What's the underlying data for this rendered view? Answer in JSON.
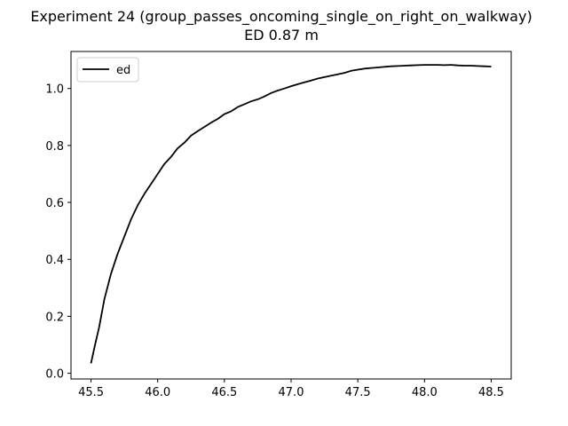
{
  "chart_data": {
    "type": "line",
    "title": "Experiment 24 (group_passes_oncoming_single_on_right_on_walkway)",
    "subtitle": "ED 0.87 m",
    "xlabel": "",
    "ylabel": "",
    "xlim": [
      45.35,
      48.65
    ],
    "ylim": [
      -0.02,
      1.13
    ],
    "xticks": [
      45.5,
      46.0,
      46.5,
      47.0,
      47.5,
      48.0,
      48.5
    ],
    "xtick_labels": [
      "45.5",
      "46.0",
      "46.5",
      "47.0",
      "47.5",
      "48.0",
      "48.5"
    ],
    "yticks": [
      0.0,
      0.2,
      0.4,
      0.6,
      0.8,
      1.0
    ],
    "ytick_labels": [
      "0.0",
      "0.2",
      "0.4",
      "0.6",
      "0.8",
      "1.0"
    ],
    "grid": false,
    "legend_position": "top-left",
    "series": [
      {
        "name": "ed",
        "color": "#000000",
        "x": [
          45.5,
          45.53,
          45.56,
          45.6,
          45.65,
          45.7,
          45.75,
          45.8,
          45.85,
          45.9,
          45.95,
          46.0,
          46.05,
          46.1,
          46.15,
          46.2,
          46.25,
          46.3,
          46.35,
          46.4,
          46.45,
          46.5,
          46.55,
          46.6,
          46.65,
          46.7,
          46.75,
          46.8,
          46.85,
          46.9,
          46.95,
          47.0,
          47.05,
          47.1,
          47.15,
          47.2,
          47.25,
          47.3,
          47.35,
          47.4,
          47.45,
          47.5,
          47.55,
          47.6,
          47.65,
          47.7,
          47.75,
          47.8,
          47.85,
          47.9,
          47.95,
          48.0,
          48.05,
          48.1,
          48.15,
          48.2,
          48.25,
          48.3,
          48.35,
          48.4,
          48.45,
          48.5
        ],
        "y": [
          0.035,
          0.1,
          0.16,
          0.26,
          0.35,
          0.42,
          0.48,
          0.54,
          0.59,
          0.63,
          0.665,
          0.7,
          0.735,
          0.76,
          0.79,
          0.81,
          0.835,
          0.85,
          0.865,
          0.88,
          0.893,
          0.91,
          0.92,
          0.935,
          0.945,
          0.955,
          0.962,
          0.972,
          0.984,
          0.993,
          1.0,
          1.008,
          1.015,
          1.022,
          1.028,
          1.035,
          1.04,
          1.045,
          1.05,
          1.055,
          1.062,
          1.066,
          1.07,
          1.072,
          1.074,
          1.076,
          1.078,
          1.079,
          1.08,
          1.081,
          1.082,
          1.083,
          1.083,
          1.083,
          1.082,
          1.083,
          1.081,
          1.08,
          1.08,
          1.079,
          1.078,
          1.077
        ]
      }
    ]
  }
}
